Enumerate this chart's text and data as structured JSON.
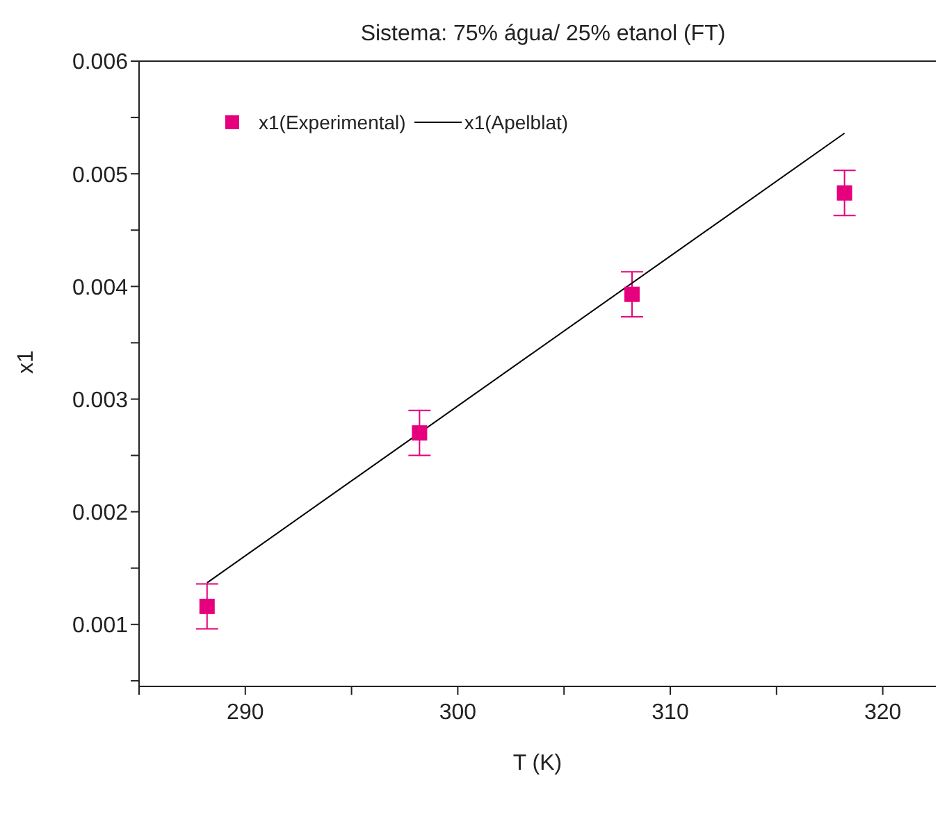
{
  "chart_data": {
    "type": "scatter",
    "title": "Sistema: 75% água/ 25% etanol (FT)",
    "xlabel": "T (K)",
    "ylabel": "x1",
    "xlim": [
      285,
      322.5
    ],
    "xticks": [
      {
        "value": 285,
        "label": null
      },
      290,
      {
        "value": 295,
        "label": null
      },
      300,
      {
        "value": 305,
        "label": null
      },
      310,
      {
        "value": 315,
        "label": null
      },
      320
    ],
    "ylim": [
      0.00045,
      0.006
    ],
    "yticks": [
      {
        "value": 0.0005,
        "label": null
      },
      0.001,
      {
        "value": 0.0015,
        "label": null
      },
      0.002,
      {
        "value": 0.0025,
        "label": null
      },
      0.003,
      {
        "value": 0.0035,
        "label": null
      },
      0.004,
      {
        "value": 0.0045,
        "label": null
      },
      0.005,
      {
        "value": 0.0055,
        "label": null
      },
      0.006
    ],
    "grid": false,
    "legend": "top left",
    "series": [
      {
        "name": "x1(Experimental)",
        "color": "#e6007e",
        "marker": "square",
        "x": [
          288.2,
          298.2,
          308.2,
          318.2
        ],
        "values": [
          0.00116,
          0.0027,
          0.00393,
          0.00483
        ],
        "errors": [
          0.0002,
          0.0002,
          0.0002,
          0.0002
        ]
      },
      {
        "name": "x1(Apelblat)",
        "type": "line",
        "color": "#000000",
        "marker": "none",
        "line_style": "solid",
        "x": [
          288.2,
          318.2
        ],
        "values": [
          0.00137,
          0.00536
        ]
      }
    ]
  }
}
